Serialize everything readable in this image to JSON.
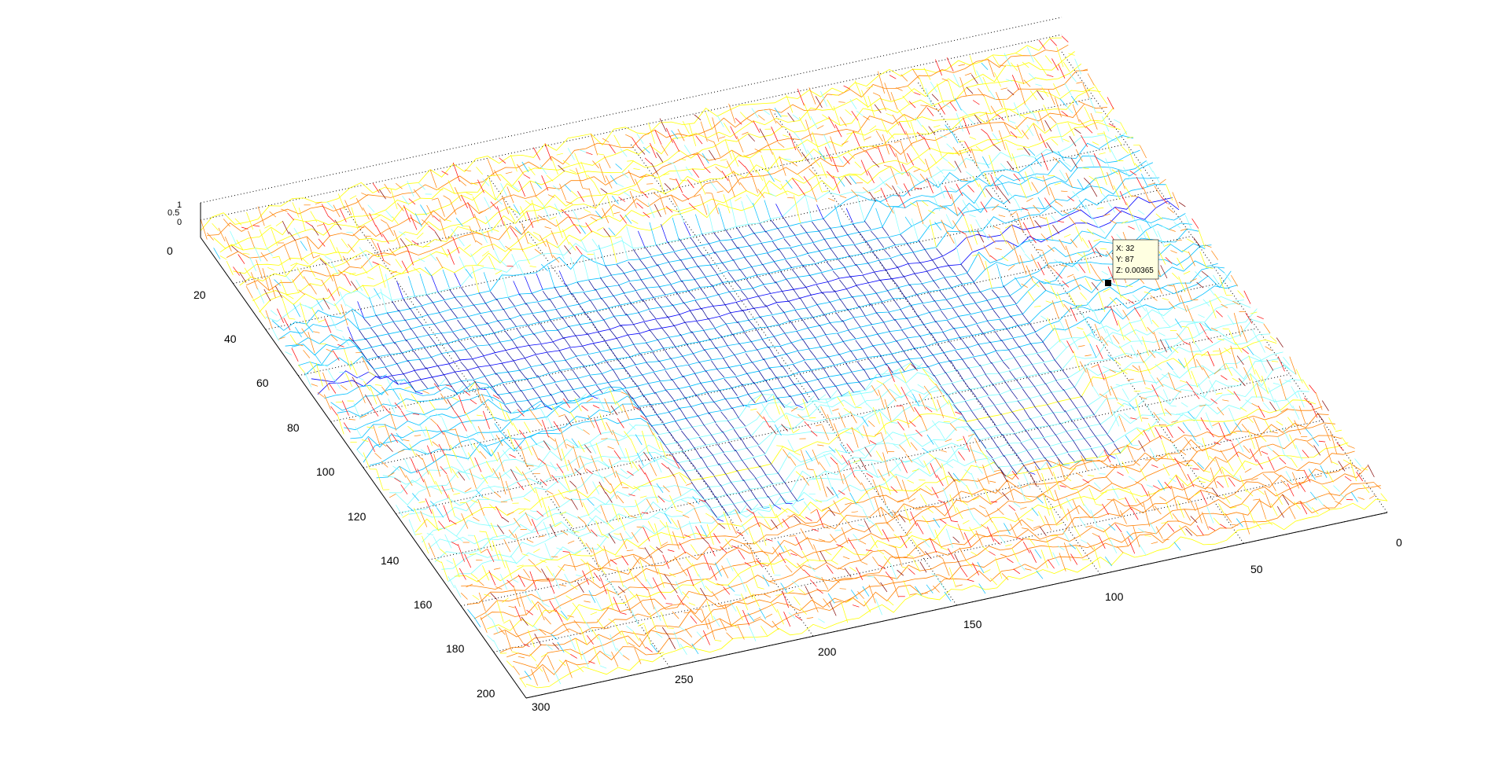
{
  "chart_data": {
    "type": "surface-mesh",
    "xlim": [
      0,
      300
    ],
    "ylim": [
      0,
      200
    ],
    "zlim": [
      0,
      1
    ],
    "x_ticks": [
      "0",
      "50",
      "100",
      "150",
      "200",
      "250",
      "300"
    ],
    "y_ticks": [
      "0",
      "20",
      "40",
      "60",
      "80",
      "100",
      "120",
      "140",
      "160",
      "180",
      "200"
    ],
    "z_ticks": [
      "0",
      "0.5",
      "1"
    ],
    "grid": true,
    "colormap": [
      "#00008f",
      "#0000ff",
      "#00bfff",
      "#7fffff",
      "#ffff00",
      "#ff8000",
      "#ff0000",
      "#800000"
    ],
    "datatip": {
      "x_label": "X: 32",
      "y_label": "Y: 87",
      "z_label": "Z: 0.00365",
      "x": 32,
      "y": 87,
      "z": 0.00365
    }
  }
}
